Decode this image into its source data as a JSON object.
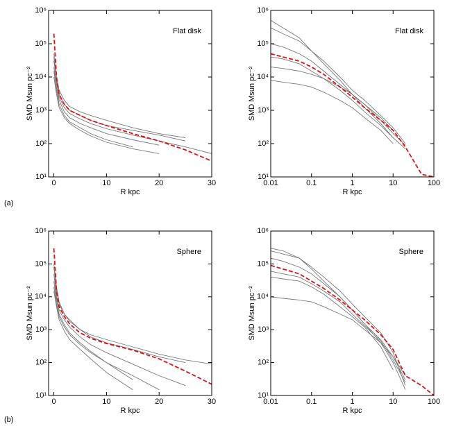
{
  "panel_labels": [
    "(a)",
    "(b)"
  ],
  "chart_data": [
    {
      "type": "line",
      "annotation": "Flat disk",
      "xlabel": "R kpc",
      "ylabel": "SMD Msun pc⁻²",
      "xscale": "linear",
      "yscale": "log",
      "xlim": [
        -1,
        30
      ],
      "xticks": [
        0,
        10,
        20,
        30
      ],
      "ylim": [
        10,
        1000000
      ],
      "yticks": [
        {
          "value": 10,
          "label": "10¹"
        },
        {
          "value": 100,
          "label": "10²"
        },
        {
          "value": 1000,
          "label": "10³"
        },
        {
          "value": 10000,
          "label": "10⁴"
        },
        {
          "value": 100000,
          "label": "10⁵"
        },
        {
          "value": 1000000,
          "label": "10⁶"
        }
      ],
      "x": [
        0,
        0.5,
        1,
        2,
        3,
        5,
        7,
        10,
        15,
        20,
        25,
        30
      ],
      "series": [
        {
          "color": "#777777",
          "values": [
            30000,
            8000,
            3000,
            1500,
            1000,
            700,
            500,
            350,
            250,
            180,
            120,
            null
          ]
        },
        {
          "color": "#777777",
          "values": [
            20000,
            5000,
            2000,
            900,
            600,
            400,
            300,
            200,
            130,
            90,
            null,
            null
          ]
        },
        {
          "color": "#777777",
          "values": [
            50000,
            10000,
            4000,
            2000,
            1300,
            900,
            700,
            500,
            300,
            200,
            150,
            null
          ]
        },
        {
          "color": "#777777",
          "values": [
            10000,
            3000,
            1200,
            600,
            400,
            250,
            170,
            110,
            70,
            50,
            null,
            null
          ]
        },
        {
          "color": "#777777",
          "values": [
            40000,
            7000,
            2500,
            1200,
            800,
            550,
            400,
            280,
            180,
            120,
            80,
            50
          ]
        },
        {
          "color": "#777777",
          "values": [
            15000,
            4000,
            1500,
            700,
            450,
            300,
            200,
            130,
            80,
            null,
            null,
            null
          ]
        },
        {
          "color": "#dd1111",
          "dashed": true,
          "values": [
            200000,
            10000,
            3000,
            1500,
            1000,
            700,
            500,
            350,
            200,
            120,
            65,
            30
          ]
        }
      ]
    },
    {
      "type": "line",
      "annotation": "Flat disk",
      "xlabel": "R kpc",
      "ylabel": "SMD Msun pc⁻²",
      "xscale": "log",
      "yscale": "log",
      "xlim": [
        0.01,
        100
      ],
      "xticks": [
        0.01,
        0.1,
        1,
        10,
        100
      ],
      "ylim": [
        10,
        1000000
      ],
      "yticks": [
        {
          "value": 10,
          "label": "10¹"
        },
        {
          "value": 100,
          "label": "10²"
        },
        {
          "value": 1000,
          "label": "10³"
        },
        {
          "value": 10000,
          "label": "10⁴"
        },
        {
          "value": 100000,
          "label": "10⁵"
        },
        {
          "value": 1000000,
          "label": "10⁶"
        }
      ],
      "x": [
        0.01,
        0.02,
        0.05,
        0.1,
        0.2,
        0.5,
        1,
        2,
        5,
        10,
        20,
        50,
        100
      ],
      "series": [
        {
          "color": "#777777",
          "values": [
            300000,
            200000,
            120000,
            60000,
            30000,
            10000,
            4000,
            2000,
            700,
            300,
            100,
            null,
            null
          ]
        },
        {
          "color": "#777777",
          "values": [
            20000,
            18000,
            15000,
            12000,
            9000,
            5000,
            3000,
            1500,
            600,
            250,
            null,
            null,
            null
          ]
        },
        {
          "color": "#777777",
          "values": [
            100000,
            80000,
            50000,
            30000,
            15000,
            6000,
            3000,
            1500,
            500,
            200,
            90,
            null,
            null
          ]
        },
        {
          "color": "#777777",
          "values": [
            8000,
            7000,
            6000,
            5000,
            3500,
            2000,
            1200,
            600,
            250,
            100,
            null,
            null,
            null
          ]
        },
        {
          "color": "#777777",
          "values": [
            500000,
            300000,
            150000,
            60000,
            25000,
            8000,
            3000,
            1200,
            400,
            150,
            null,
            null,
            null
          ]
        },
        {
          "color": "#777777",
          "values": [
            40000,
            35000,
            25000,
            15000,
            9000,
            4000,
            2000,
            900,
            350,
            150,
            70,
            null,
            null
          ]
        },
        {
          "color": "#dd1111",
          "dashed": true,
          "values": [
            50000,
            40000,
            30000,
            20000,
            12000,
            5000,
            2500,
            1200,
            500,
            250,
            80,
            12,
            10
          ]
        }
      ]
    },
    {
      "type": "line",
      "annotation": "Sphere",
      "xlabel": "R kpc",
      "ylabel": "SMD Msun pc⁻²",
      "xscale": "linear",
      "yscale": "log",
      "xlim": [
        -1,
        30
      ],
      "xticks": [
        0,
        10,
        20,
        30
      ],
      "ylim": [
        10,
        1000000
      ],
      "yticks": [
        {
          "value": 10,
          "label": "10¹"
        },
        {
          "value": 100,
          "label": "10²"
        },
        {
          "value": 1000,
          "label": "10³"
        },
        {
          "value": 10000,
          "label": "10⁴"
        },
        {
          "value": 100000,
          "label": "10⁵"
        },
        {
          "value": 1000000,
          "label": "10⁶"
        }
      ],
      "x": [
        0,
        0.5,
        1,
        2,
        3,
        5,
        7,
        10,
        15,
        20,
        25,
        30
      ],
      "series": [
        {
          "color": "#777777",
          "values": [
            50000,
            10000,
            4000,
            2000,
            1200,
            600,
            350,
            200,
            90,
            40,
            20,
            null
          ]
        },
        {
          "color": "#777777",
          "values": [
            20000,
            6000,
            2500,
            1200,
            700,
            350,
            200,
            100,
            40,
            15,
            null,
            null
          ]
        },
        {
          "color": "#777777",
          "values": [
            80000,
            15000,
            6000,
            3000,
            1800,
            1000,
            700,
            500,
            300,
            180,
            120,
            90
          ]
        },
        {
          "color": "#777777",
          "values": [
            30000,
            8000,
            3000,
            1400,
            800,
            400,
            220,
            100,
            30,
            null,
            null,
            null
          ]
        },
        {
          "color": "#777777",
          "values": [
            100000,
            20000,
            7000,
            3000,
            2000,
            1000,
            600,
            400,
            250,
            150,
            100,
            null
          ]
        },
        {
          "color": "#777777",
          "values": [
            15000,
            5000,
            2000,
            900,
            500,
            250,
            130,
            50,
            15,
            null,
            null,
            null
          ]
        },
        {
          "color": "#dd1111",
          "dashed": true,
          "values": [
            300000,
            15000,
            5000,
            2500,
            1500,
            800,
            550,
            380,
            240,
            130,
            55,
            22
          ]
        }
      ]
    },
    {
      "type": "line",
      "annotation": "Sphere",
      "xlabel": "R kpc",
      "ylabel": "SMD Msun pc⁻²",
      "xscale": "log",
      "yscale": "log",
      "xlim": [
        0.01,
        100
      ],
      "xticks": [
        0.01,
        0.1,
        1,
        10,
        100
      ],
      "ylim": [
        10,
        1000000
      ],
      "yticks": [
        {
          "value": 10,
          "label": "10¹"
        },
        {
          "value": 100,
          "label": "10²"
        },
        {
          "value": 1000,
          "label": "10³"
        },
        {
          "value": 10000,
          "label": "10⁴"
        },
        {
          "value": 100000,
          "label": "10⁵"
        },
        {
          "value": 1000000,
          "label": "10⁶"
        }
      ],
      "x": [
        0.01,
        0.02,
        0.05,
        0.1,
        0.2,
        0.5,
        1,
        2,
        5,
        10,
        20,
        50,
        100
      ],
      "series": [
        {
          "color": "#777777",
          "values": [
            250000,
            200000,
            150000,
            80000,
            40000,
            15000,
            6000,
            2500,
            800,
            200,
            20,
            null,
            null
          ]
        },
        {
          "color": "#777777",
          "values": [
            10000,
            9000,
            8000,
            7000,
            5000,
            3000,
            2000,
            1000,
            400,
            150,
            30,
            null,
            null
          ]
        },
        {
          "color": "#777777",
          "values": [
            150000,
            120000,
            80000,
            50000,
            25000,
            10000,
            4000,
            1500,
            400,
            100,
            15,
            null,
            null
          ]
        },
        {
          "color": "#777777",
          "values": [
            40000,
            35000,
            30000,
            20000,
            12000,
            5000,
            2500,
            1200,
            300,
            60,
            null,
            null,
            null
          ]
        },
        {
          "color": "#777777",
          "values": [
            300000,
            250000,
            150000,
            70000,
            30000,
            10000,
            4000,
            1500,
            500,
            150,
            40,
            null,
            null
          ]
        },
        {
          "color": "#777777",
          "values": [
            60000,
            50000,
            40000,
            25000,
            15000,
            7000,
            3000,
            1300,
            450,
            120,
            25,
            null,
            null
          ]
        },
        {
          "color": "#dd1111",
          "dashed": true,
          "values": [
            90000,
            70000,
            50000,
            30000,
            18000,
            8000,
            4000,
            2000,
            700,
            250,
            40,
            20,
            10
          ]
        }
      ]
    }
  ]
}
